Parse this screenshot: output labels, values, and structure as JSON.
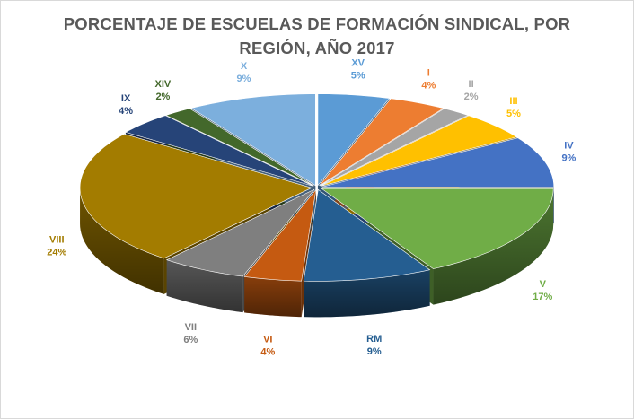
{
  "chart_data": {
    "type": "pie",
    "title": "PORCENTAJE  DE ESCUELAS DE FORMACIÓN SINDICAL,  POR REGIÓN, AÑO 2017",
    "title_lines": [
      "PORCENTAJE  DE ESCUELAS DE FORMACIÓN SINDICAL,  POR",
      "REGIÓN, AÑO 2017"
    ],
    "style": "3d-exploded-pie",
    "legend": "none",
    "slices": [
      {
        "label": "XV",
        "value": 5,
        "display": "5%",
        "color": "#5b9bd5",
        "label_color": "#5b9bd5"
      },
      {
        "label": "I",
        "value": 4,
        "display": "4%",
        "color": "#ed7d31",
        "label_color": "#ed7d31"
      },
      {
        "label": "II",
        "value": 2,
        "display": "2%",
        "color": "#a5a5a5",
        "label_color": "#a5a5a5"
      },
      {
        "label": "III",
        "value": 5,
        "display": "5%",
        "color": "#ffc000",
        "label_color": "#ffc000"
      },
      {
        "label": "IV",
        "value": 9,
        "display": "9%",
        "color": "#4472c4",
        "label_color": "#4472c4"
      },
      {
        "label": "V",
        "value": 17,
        "display": "17%",
        "color": "#70ad47",
        "label_color": "#70ad47"
      },
      {
        "label": "RM",
        "value": 9,
        "display": "9%",
        "color": "#255e91",
        "label_color": "#255e91"
      },
      {
        "label": "VI",
        "value": 4,
        "display": "4%",
        "color": "#c55a11",
        "label_color": "#c55a11"
      },
      {
        "label": "VII",
        "value": 6,
        "display": "6%",
        "color": "#7f7f7f",
        "label_color": "#7f7f7f"
      },
      {
        "label": "VIII",
        "value": 24,
        "display": "24%",
        "color": "#a37c00",
        "label_color": "#a37c00"
      },
      {
        "label": "IX",
        "value": 4,
        "display": "4%",
        "color": "#264478",
        "label_color": "#264478"
      },
      {
        "label": "XIV",
        "value": 2,
        "display": "2%",
        "color": "#43682b",
        "label_color": "#43682b"
      },
      {
        "label": "X",
        "value": 9,
        "display": "9%",
        "color": "#7cafdd",
        "label_color": "#7cafdd"
      }
    ]
  }
}
